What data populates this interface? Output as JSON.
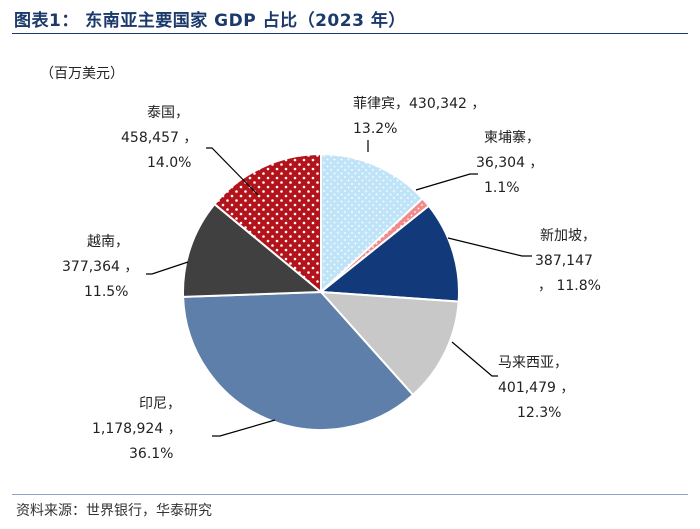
{
  "header": {
    "title": "图表1： 东南亚主要国家 GDP 占比（2023 年）",
    "unit": "（百万美元）"
  },
  "footer": {
    "source": "资料来源：世界银行，华泰研究"
  },
  "colors": {
    "title": "#1b3a6b",
    "philippines": "#bfe3f7",
    "cambodia": "#f28a8a",
    "singapore": "#123a7a",
    "malaysia": "#c8c8c8",
    "indonesia": "#5e7fa9",
    "vietnam": "#404040",
    "thailand": "#b3141c"
  },
  "chart_data": {
    "type": "pie",
    "title": "东南亚主要国家 GDP 占比（2023 年）",
    "unit": "百万美元",
    "slices": [
      {
        "name": "菲律宾",
        "value": 430342,
        "value_text": "430,342",
        "percent_text": "13.2%",
        "color": "#bfe3f7",
        "pattern": "dots-light"
      },
      {
        "name": "柬埔寨",
        "value": 36304,
        "value_text": "36,304",
        "percent_text": "1.1%",
        "color": "#f28a8a",
        "pattern": "dots-light"
      },
      {
        "name": "新加坡",
        "value": 387147,
        "value_text": "387,147",
        "percent_text": "11.8%",
        "color": "#123a7a",
        "pattern": "none"
      },
      {
        "name": "马来西亚",
        "value": 401479,
        "value_text": "401,479",
        "percent_text": "12.3%",
        "color": "#c8c8c8",
        "pattern": "none"
      },
      {
        "name": "印尼",
        "value": 1178924,
        "value_text": "1,178,924",
        "percent_text": "36.1%",
        "color": "#5e7fa9",
        "pattern": "none"
      },
      {
        "name": "越南",
        "value": 377364,
        "value_text": "377,364",
        "percent_text": "11.5%",
        "color": "#404040",
        "pattern": "none"
      },
      {
        "name": "泰国",
        "value": 458457,
        "value_text": "458,457",
        "percent_text": "14.0%",
        "color": "#b3141c",
        "pattern": "dots-white"
      }
    ]
  }
}
